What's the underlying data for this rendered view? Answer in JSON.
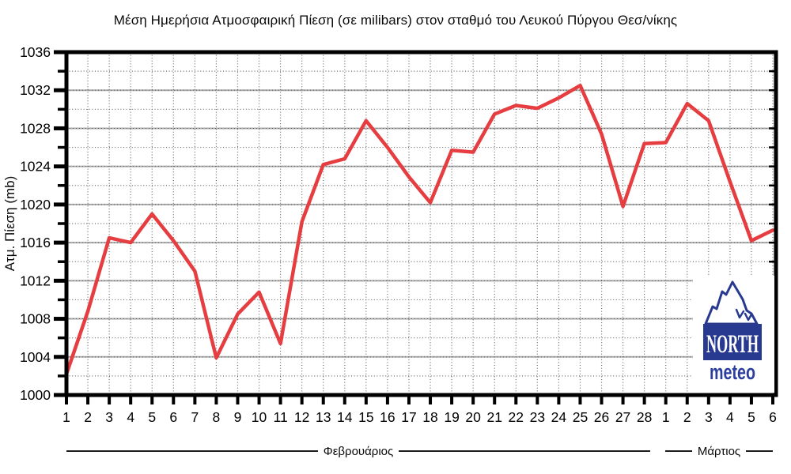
{
  "title": "Μέση Ημερήσια Ατμοσφαιρική Πίεση (σε milibars) στον σταθμό του Λευκού Πύργου Θεσ/νίκης",
  "y_axis": {
    "label": "Ατμ. Πίεση (mb)",
    "tick_labels": [
      "1036",
      "1032",
      "1028",
      "1024",
      "1020",
      "1016",
      "1012",
      "1008",
      "1004",
      "1000"
    ]
  },
  "chart_data": {
    "type": "line",
    "title": "Μέση Ημερήσια Ατμοσφαιρική Πίεση (σε milibars) στον σταθμό του Λευκού Πύργου Θεσ/νίκης",
    "xlabel": "",
    "ylabel": "Ατμ. Πίεση (mb)",
    "ylim": [
      1000,
      1036
    ],
    "y_major_step": 4,
    "y_minor_step": 2,
    "grid": "major solid gray + minor dotted, vertical dotted per day",
    "legend_position": "none",
    "line_color": "#e63d40",
    "categories": [
      "1",
      "2",
      "3",
      "4",
      "5",
      "6",
      "7",
      "8",
      "9",
      "10",
      "11",
      "12",
      "13",
      "14",
      "15",
      "16",
      "17",
      "18",
      "19",
      "20",
      "21",
      "22",
      "23",
      "24",
      "25",
      "26",
      "27",
      "28",
      "1",
      "2",
      "3",
      "4",
      "5",
      "6"
    ],
    "values": [
      1002.2,
      1008.8,
      1016.5,
      1016.0,
      1019.0,
      1016.2,
      1013.0,
      1003.9,
      1008.5,
      1010.8,
      1005.4,
      1018.2,
      1024.2,
      1024.8,
      1028.8,
      1026.0,
      1022.9,
      1020.2,
      1025.7,
      1025.5,
      1029.5,
      1030.4,
      1030.1,
      1031.2,
      1032.5,
      1027.4,
      1019.8,
      1026.4,
      1026.5,
      1030.6,
      1028.8,
      1022.4,
      1016.2,
      1017.3
    ],
    "months": [
      {
        "label": "Φεβρουάριος",
        "days": 28
      },
      {
        "label": "Μάρτιος",
        "days": 6
      }
    ]
  },
  "logo": {
    "line1": "NORTH",
    "line2": "meteo",
    "box_color": "#283a90",
    "meteo_color": "#2b3e9e"
  }
}
